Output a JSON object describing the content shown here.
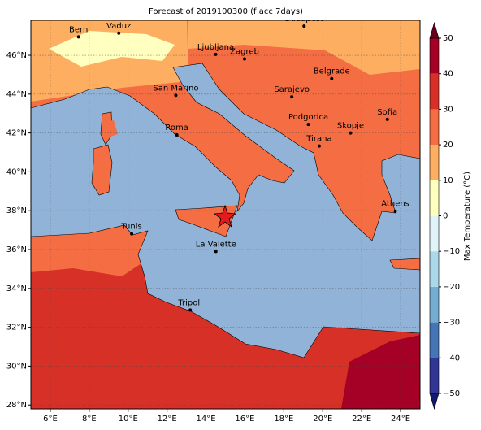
{
  "title": "Forecast of 2019100300 (f acc 7days)",
  "map": {
    "lonlim": [
      5,
      25
    ],
    "latlim": [
      27.8,
      47.8
    ],
    "xticks": [
      {
        "value": 6,
        "label": "6°E"
      },
      {
        "value": 8,
        "label": "8°E"
      },
      {
        "value": 10,
        "label": "10°E"
      },
      {
        "value": 12,
        "label": "12°E"
      },
      {
        "value": 14,
        "label": "14°E"
      },
      {
        "value": 16,
        "label": "16°E"
      },
      {
        "value": 18,
        "label": "18°E"
      },
      {
        "value": 20,
        "label": "20°E"
      },
      {
        "value": 22,
        "label": "22°E"
      },
      {
        "value": 24,
        "label": "24°E"
      }
    ],
    "yticks": [
      {
        "value": 28,
        "label": "28°N"
      },
      {
        "value": 30,
        "label": "30°N"
      },
      {
        "value": 32,
        "label": "32°N"
      },
      {
        "value": 34,
        "label": "34°N"
      },
      {
        "value": 36,
        "label": "36°N"
      },
      {
        "value": 38,
        "label": "38°N"
      },
      {
        "value": 40,
        "label": "40°N"
      },
      {
        "value": 42,
        "label": "42°N"
      },
      {
        "value": 44,
        "label": "44°N"
      },
      {
        "value": 46,
        "label": "46°N"
      }
    ],
    "cities": [
      {
        "name": "Bern",
        "lon": 7.45,
        "lat": 46.95
      },
      {
        "name": "Vaduz",
        "lon": 9.52,
        "lat": 47.14
      },
      {
        "name": "Budapest",
        "lon": 19.04,
        "lat": 47.5
      },
      {
        "name": "Ljubljana",
        "lon": 14.5,
        "lat": 46.05
      },
      {
        "name": "Zagreb",
        "lon": 15.98,
        "lat": 45.81
      },
      {
        "name": "Belgrade",
        "lon": 20.46,
        "lat": 44.8
      },
      {
        "name": "San Marino",
        "lon": 12.45,
        "lat": 43.94
      },
      {
        "name": "Sarajevo",
        "lon": 18.41,
        "lat": 43.86
      },
      {
        "name": "Sofia",
        "lon": 23.32,
        "lat": 42.7
      },
      {
        "name": "Roma",
        "lon": 12.5,
        "lat": 41.9
      },
      {
        "name": "Podgorica",
        "lon": 19.26,
        "lat": 42.44
      },
      {
        "name": "Skopje",
        "lon": 21.43,
        "lat": 42.0
      },
      {
        "name": "Tirana",
        "lon": 19.82,
        "lat": 41.33
      },
      {
        "name": "Athens",
        "lon": 23.73,
        "lat": 37.98
      },
      {
        "name": "Tunis",
        "lon": 10.18,
        "lat": 36.81
      },
      {
        "name": "La Valette",
        "lon": 14.51,
        "lat": 35.9
      },
      {
        "name": "Tripoli",
        "lon": 13.19,
        "lat": 32.89
      }
    ]
  },
  "colorbar": {
    "label": "Max Temperature (°C)",
    "levels": [
      -50,
      -40,
      -30,
      -20,
      -10,
      0,
      10,
      20,
      30,
      40,
      50
    ],
    "colors": [
      "#313695",
      "#4575b4",
      "#74add1",
      "#abd9e9",
      "#e0f3f8",
      "#ffffbf",
      "#fdae61",
      "#f46d43",
      "#d73027",
      "#a50026"
    ],
    "under_color": "#111a6e",
    "over_color": "#67001f",
    "ticks": [
      {
        "value": -50,
        "label": "−50"
      },
      {
        "value": -40,
        "label": "−40"
      },
      {
        "value": -30,
        "label": "−30"
      },
      {
        "value": -20,
        "label": "−20"
      },
      {
        "value": -10,
        "label": "−10"
      },
      0,
      10,
      20,
      30,
      40,
      50
    ]
  }
}
